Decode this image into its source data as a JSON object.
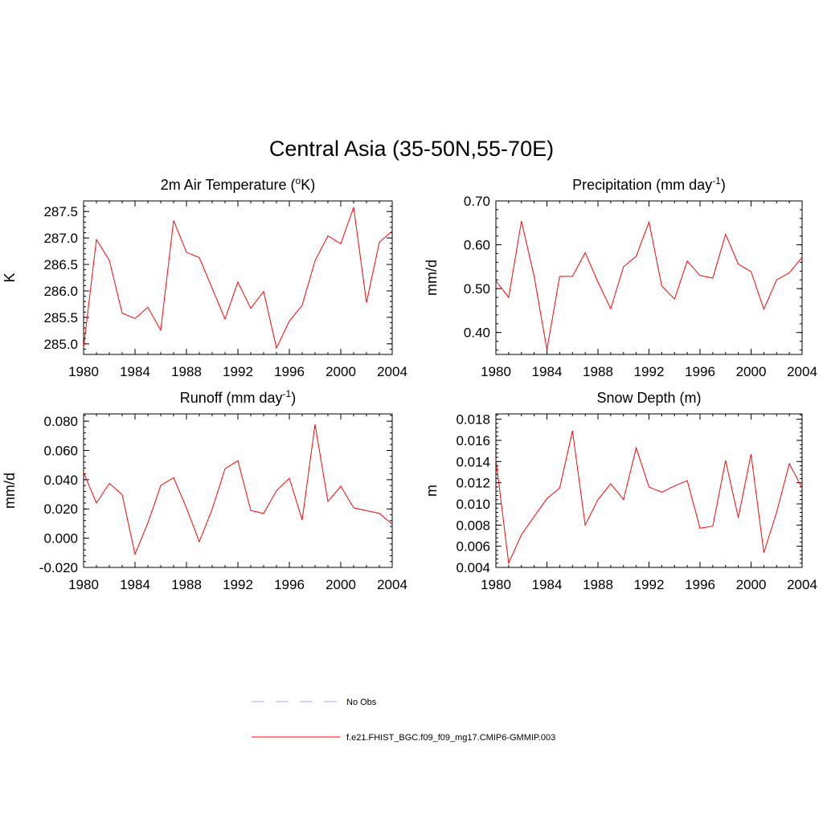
{
  "main_title": "Central Asia (35-50N,55-70E)",
  "chart_data": [
    {
      "type": "line",
      "title": "2m Air Temperature (",
      "title_sup": "o",
      "title_suffix": "K)",
      "ylabel": "K",
      "xlim": [
        1980,
        2004
      ],
      "ylim": [
        284.8,
        287.7
      ],
      "x_ticks": [
        1980,
        1984,
        1988,
        1992,
        1996,
        2000,
        2004
      ],
      "y_ticks": [
        "285.0",
        "285.5",
        "286.0",
        "286.5",
        "287.0",
        "287.5"
      ],
      "series": [
        {
          "color": "#ff0000",
          "x": [
            1980,
            1981,
            1982,
            1983,
            1984,
            1985,
            1986,
            1987,
            1988,
            1989,
            1990,
            1991,
            1992,
            1993,
            1994,
            1995,
            1996,
            1997,
            1998,
            1999,
            2000,
            2001,
            2002,
            2003,
            2004
          ],
          "values": [
            284.93,
            286.97,
            286.58,
            285.58,
            285.48,
            285.69,
            285.26,
            287.33,
            286.73,
            286.63,
            286.05,
            285.47,
            286.17,
            285.67,
            285.99,
            284.92,
            285.43,
            285.73,
            286.57,
            287.04,
            286.89,
            287.58,
            285.78,
            286.92,
            287.13
          ]
        }
      ]
    },
    {
      "type": "line",
      "title": "Precipitation (mm day",
      "title_sup": "-1",
      "title_suffix": ")",
      "ylabel": "mm/d",
      "xlim": [
        1980,
        2004
      ],
      "ylim": [
        0.35,
        0.7
      ],
      "x_ticks": [
        1980,
        1984,
        1988,
        1992,
        1996,
        2000,
        2004
      ],
      "y_ticks": [
        "0.40",
        "0.50",
        "0.60",
        "0.70"
      ],
      "series": [
        {
          "color": "#ff0000",
          "x": [
            1980,
            1981,
            1982,
            1983,
            1984,
            1985,
            1986,
            1987,
            1988,
            1989,
            1990,
            1991,
            1992,
            1993,
            1994,
            1995,
            1996,
            1997,
            1998,
            1999,
            2000,
            2001,
            2002,
            2003,
            2004
          ],
          "values": [
            0.518,
            0.48,
            0.654,
            0.528,
            0.361,
            0.528,
            0.528,
            0.582,
            0.515,
            0.454,
            0.55,
            0.574,
            0.652,
            0.506,
            0.476,
            0.563,
            0.53,
            0.524,
            0.624,
            0.556,
            0.539,
            0.453,
            0.52,
            0.536,
            0.572
          ]
        }
      ]
    },
    {
      "type": "line",
      "title": "Runoff (mm day",
      "title_sup": "-1",
      "title_suffix": ")",
      "ylabel": "mm/d",
      "xlim": [
        1980,
        2004
      ],
      "ylim": [
        -0.02,
        0.085
      ],
      "x_ticks": [
        1980,
        1984,
        1988,
        1992,
        1996,
        2000,
        2004
      ],
      "y_ticks": [
        "-0.020",
        "0.000",
        "0.020",
        "0.040",
        "0.060",
        "0.080"
      ],
      "series": [
        {
          "color": "#ff0000",
          "x": [
            1980,
            1981,
            1982,
            1983,
            1984,
            1985,
            1986,
            1987,
            1988,
            1989,
            1990,
            1991,
            1992,
            1993,
            1994,
            1995,
            1996,
            1997,
            1998,
            1999,
            2000,
            2001,
            2002,
            2003,
            2004
          ],
          "values": [
            0.0448,
            0.024,
            0.0375,
            0.0298,
            -0.011,
            0.0104,
            0.036,
            0.0414,
            0.0206,
            -0.0024,
            0.0198,
            0.0475,
            0.053,
            0.019,
            0.0169,
            0.0325,
            0.041,
            0.0125,
            0.0778,
            0.025,
            0.0355,
            0.0208,
            0.0188,
            0.017,
            0.0095
          ]
        }
      ]
    },
    {
      "type": "line",
      "title": "Snow Depth (m)",
      "title_sup": "",
      "title_suffix": "",
      "ylabel": "m",
      "xlim": [
        1980,
        2004
      ],
      "ylim": [
        0.004,
        0.0185
      ],
      "x_ticks": [
        1980,
        1984,
        1988,
        1992,
        1996,
        2000,
        2004
      ],
      "y_ticks": [
        "0.004",
        "0.006",
        "0.008",
        "0.010",
        "0.012",
        "0.014",
        "0.016",
        "0.018"
      ],
      "series": [
        {
          "color": "#ff0000",
          "x": [
            1980,
            1981,
            1982,
            1983,
            1984,
            1985,
            1986,
            1987,
            1988,
            1989,
            1990,
            1991,
            1992,
            1993,
            1994,
            1995,
            1996,
            1997,
            1998,
            1999,
            2000,
            2001,
            2002,
            2003,
            2004
          ],
          "values": [
            0.0142,
            0.0044,
            0.0071,
            0.0088,
            0.0105,
            0.0115,
            0.0169,
            0.008,
            0.0104,
            0.0119,
            0.0104,
            0.0153,
            0.0116,
            0.0111,
            0.0117,
            0.0122,
            0.0077,
            0.0079,
            0.0141,
            0.0087,
            0.0147,
            0.0054,
            0.0092,
            0.0138,
            0.0115
          ]
        }
      ]
    }
  ],
  "legend": [
    {
      "label": "No Obs",
      "color": "#a0a0f0",
      "dash": "dashed"
    },
    {
      "label": "f.e21.FHIST_BGC.f09_f09_mg17.CMIP6-GMMIP.003",
      "color": "#ff0000",
      "dash": "solid"
    }
  ]
}
